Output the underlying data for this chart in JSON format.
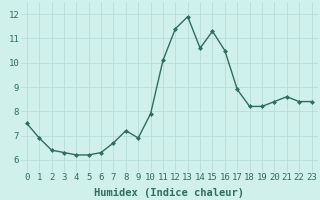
{
  "x": [
    0,
    1,
    2,
    3,
    4,
    5,
    6,
    7,
    8,
    9,
    10,
    11,
    12,
    13,
    14,
    15,
    16,
    17,
    18,
    19,
    20,
    21,
    22,
    23
  ],
  "y": [
    7.5,
    6.9,
    6.4,
    6.3,
    6.2,
    6.2,
    6.3,
    6.7,
    7.2,
    6.9,
    7.9,
    10.1,
    11.4,
    11.9,
    10.6,
    11.3,
    10.5,
    8.9,
    8.2,
    8.2,
    8.4,
    8.6,
    8.4,
    8.4
  ],
  "xlabel": "Humidex (Indice chaleur)",
  "ylim": [
    5.5,
    12.5
  ],
  "xlim": [
    -0.5,
    23.5
  ],
  "yticks": [
    6,
    7,
    8,
    9,
    10,
    11,
    12
  ],
  "xticks": [
    0,
    1,
    2,
    3,
    4,
    5,
    6,
    7,
    8,
    9,
    10,
    11,
    12,
    13,
    14,
    15,
    16,
    17,
    18,
    19,
    20,
    21,
    22,
    23
  ],
  "xtick_labels": [
    "0",
    "1",
    "2",
    "3",
    "4",
    "5",
    "6",
    "7",
    "8",
    "9",
    "10",
    "11",
    "12",
    "13",
    "14",
    "15",
    "16",
    "17",
    "18",
    "19",
    "20",
    "21",
    "22",
    "23"
  ],
  "line_color": "#2e6e5e",
  "marker": "D",
  "marker_size": 2.0,
  "line_width": 1.0,
  "bg_color": "#cff0eb",
  "grid_color": "#b8ddd8",
  "xlabel_fontsize": 7.5,
  "tick_fontsize": 6.5
}
